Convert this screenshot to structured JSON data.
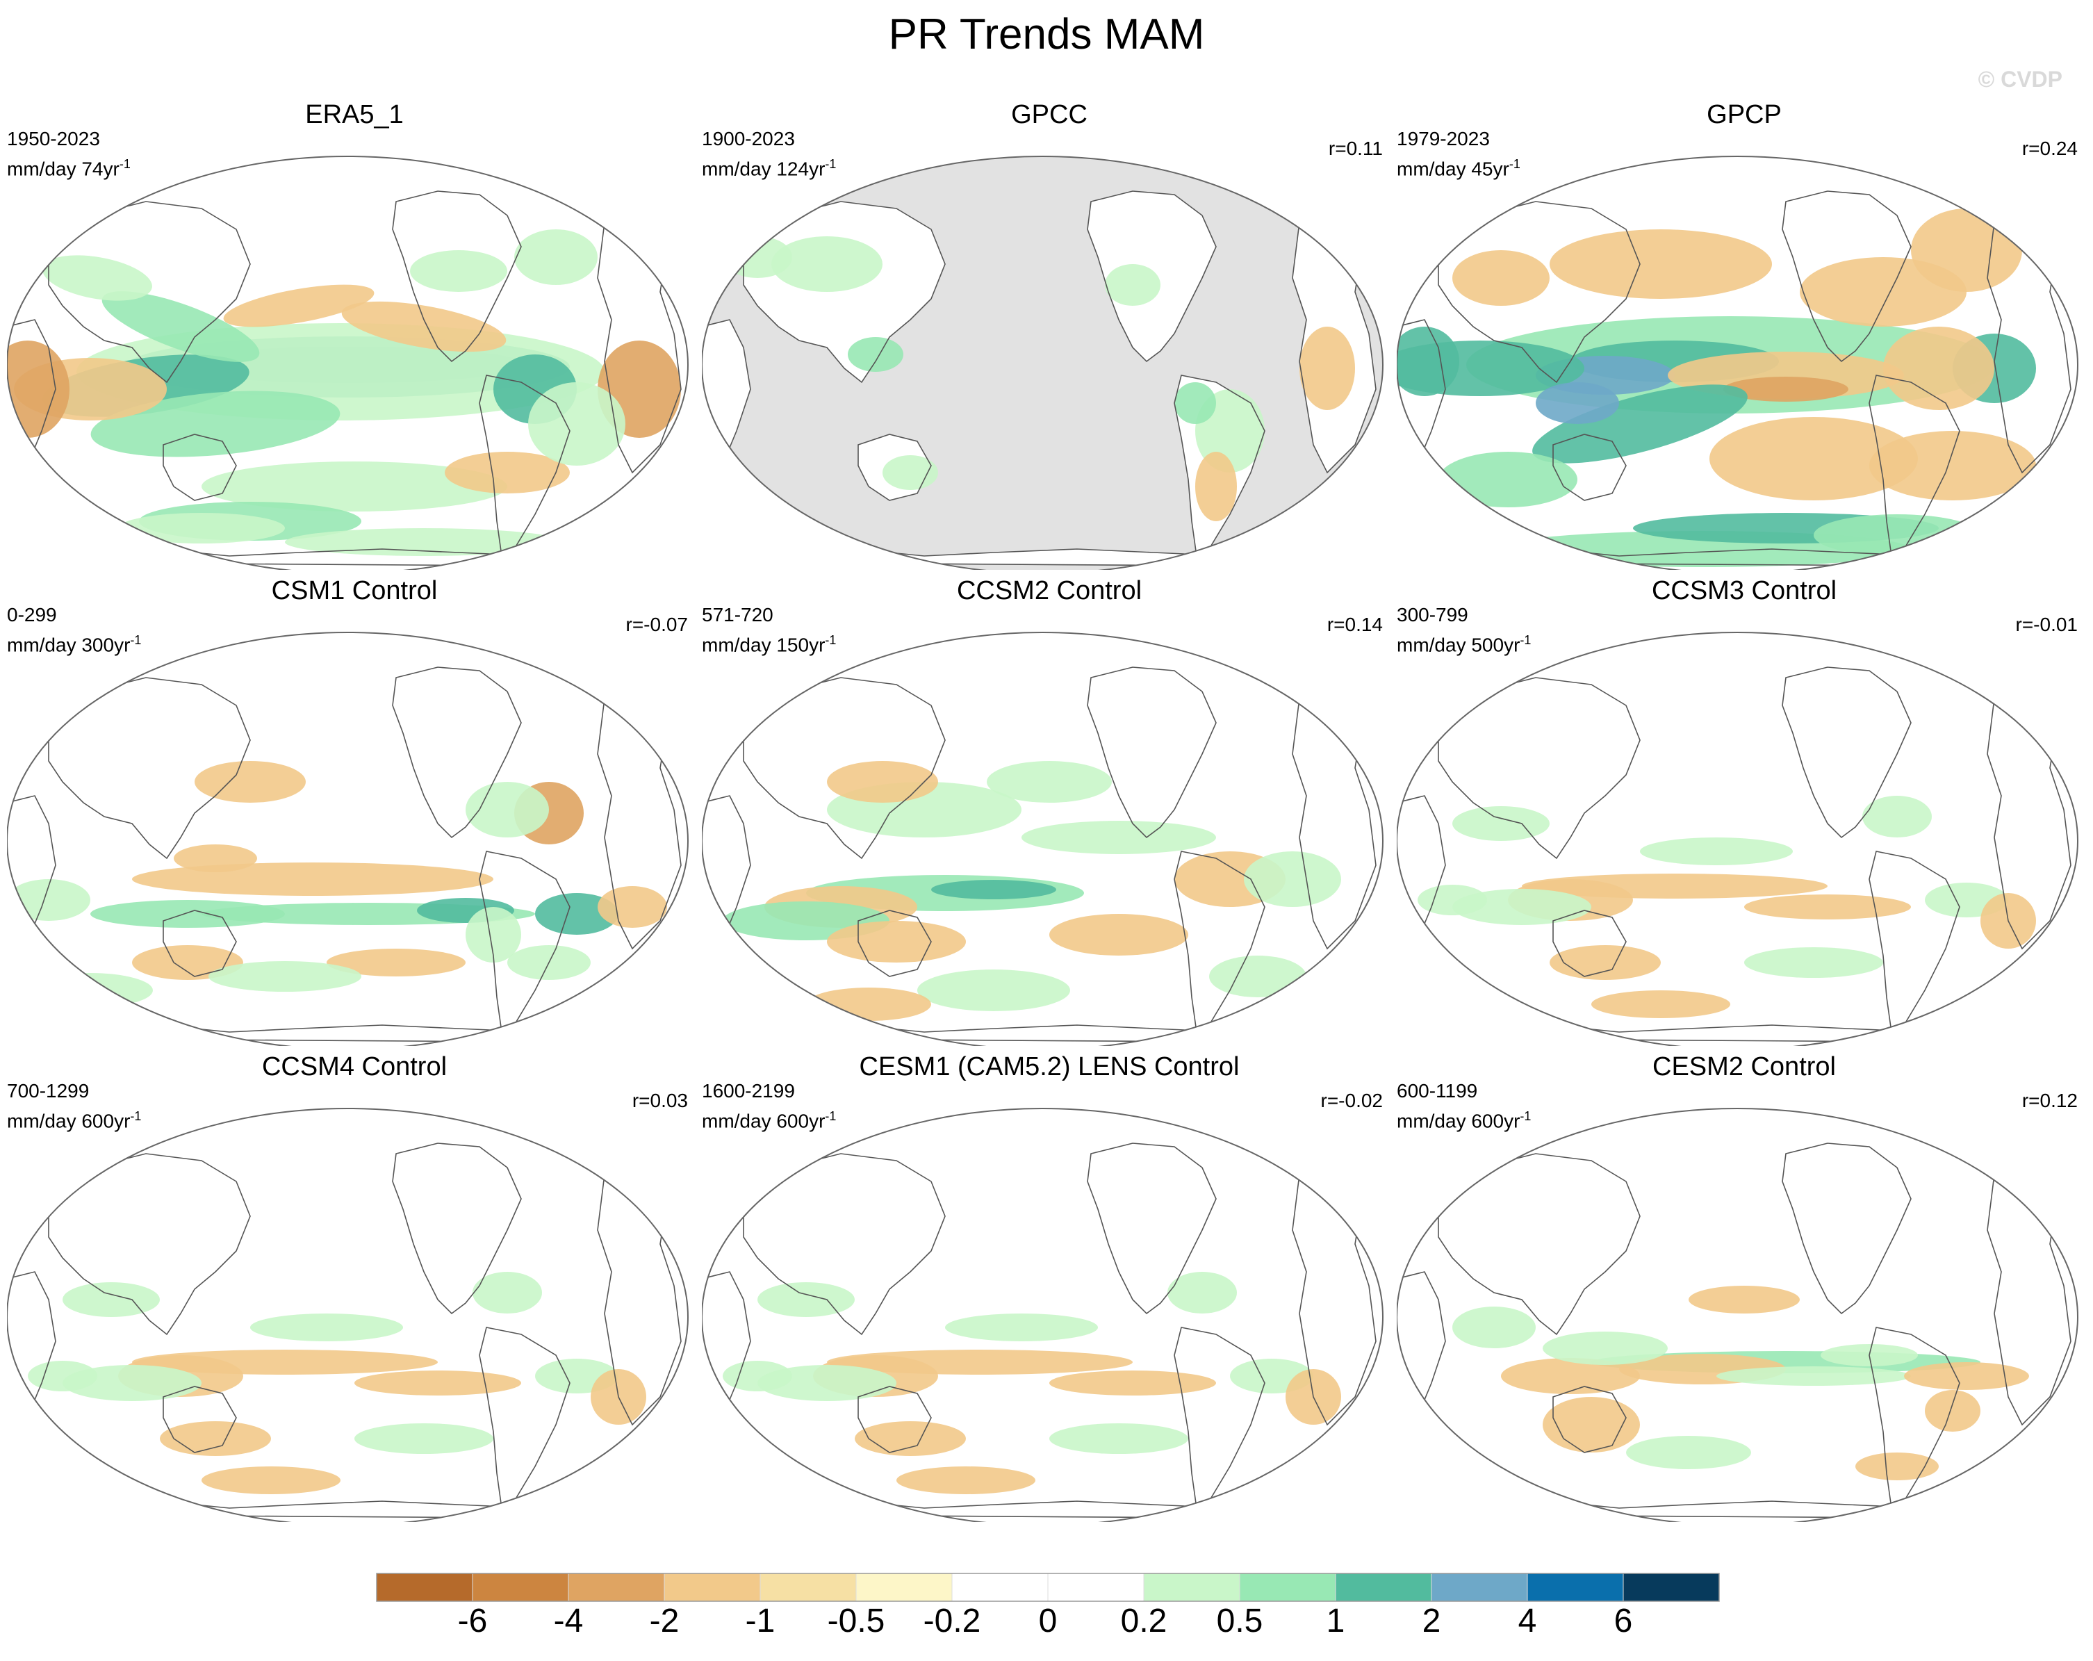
{
  "title": "PR Trends MAM",
  "watermark": "© CVDP",
  "panels": [
    {
      "title": "ERA5_1",
      "period": "1950-2023",
      "units": "mm/day 74yr",
      "units_exp": "-1",
      "corr": "",
      "style": "strong",
      "land_mask": false
    },
    {
      "title": "GPCC",
      "period": "1900-2023",
      "units": "mm/day 124yr",
      "units_exp": "-1",
      "corr": "r=0.11",
      "style": "landonly",
      "land_mask": true
    },
    {
      "title": "GPCP",
      "period": "1979-2023",
      "units": "mm/day 45yr",
      "units_exp": "-1",
      "corr": "r=0.24",
      "style": "strong2",
      "land_mask": false
    },
    {
      "title": "CSM1 Control",
      "period": "0-299",
      "units": "mm/day 300yr",
      "units_exp": "-1",
      "corr": "r=-0.07",
      "style": "medium",
      "land_mask": false
    },
    {
      "title": "CCSM2 Control",
      "period": "571-720",
      "units": "mm/day 150yr",
      "units_exp": "-1",
      "corr": "r=0.14",
      "style": "medium2",
      "land_mask": false
    },
    {
      "title": "CCSM3 Control",
      "period": "300-799",
      "units": "mm/day 500yr",
      "units_exp": "-1",
      "corr": "r=-0.01",
      "style": "weak",
      "land_mask": false
    },
    {
      "title": "CCSM4 Control",
      "period": "700-1299",
      "units": "mm/day 600yr",
      "units_exp": "-1",
      "corr": "r=0.03",
      "style": "weak",
      "land_mask": false
    },
    {
      "title": "CESM1 (CAM5.2) LENS Control",
      "period": "1600-2199",
      "units": "mm/day 600yr",
      "units_exp": "-1",
      "corr": "r=-0.02",
      "style": "weak",
      "land_mask": false
    },
    {
      "title": "CESM2 Control",
      "period": "600-1199",
      "units": "mm/day 600yr",
      "units_exp": "-1",
      "corr": "r=0.12",
      "style": "weak2",
      "land_mask": false
    }
  ],
  "colorbar": {
    "colors": [
      "#b56a2b",
      "#cc8540",
      "#dfa462",
      "#f2c98a",
      "#f6e0a4",
      "#fdf6c8",
      "#ffffff",
      "#ffffff",
      "#c9f6c9",
      "#98e8b4",
      "#52bb9e",
      "#6ea8c8",
      "#0a6fac",
      "#073a5c"
    ],
    "labels": [
      "-6",
      "-4",
      "-2",
      "-1",
      "-0.5",
      "-0.2",
      "0",
      "0.2",
      "0.5",
      "1",
      "2",
      "4",
      "6"
    ]
  },
  "colors": {
    "land_mask": "#e2e2e2",
    "coast": "#555555",
    "outline": "#666666"
  }
}
